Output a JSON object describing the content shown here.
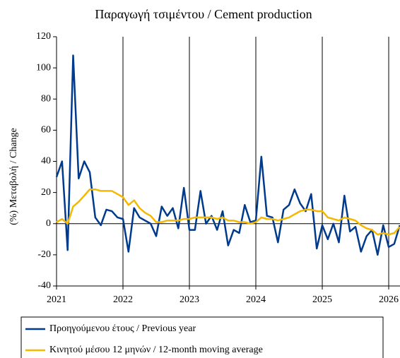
{
  "chart_data": {
    "type": "line",
    "title": "Παραγωγή τσιμέντου / Cement production",
    "y_label": "(%) Μεταβολή / Change",
    "x": [
      2021,
      2021.083,
      2021.167,
      2021.25,
      2021.333,
      2021.417,
      2021.5,
      2021.583,
      2021.667,
      2021.75,
      2021.833,
      2021.917,
      2022,
      2022.083,
      2022.167,
      2022.25,
      2022.333,
      2022.417,
      2022.5,
      2022.583,
      2022.667,
      2022.75,
      2022.833,
      2022.917,
      2023,
      2023.083,
      2023.167,
      2023.25,
      2023.333,
      2023.417,
      2023.5,
      2023.583,
      2023.667,
      2023.75,
      2023.833,
      2023.917,
      2024,
      2024.083,
      2024.167,
      2024.25,
      2024.333,
      2024.417,
      2024.5,
      2024.583,
      2024.667,
      2024.75,
      2024.833,
      2024.917,
      2025,
      2025.083,
      2025.167,
      2025.25,
      2025.333,
      2025.417,
      2025.5,
      2025.583,
      2025.667,
      2025.75,
      2025.833,
      2025.917,
      2026,
      2026.083,
      2026.167
    ],
    "series": [
      {
        "name": "Προηγούμενου έτους / Previous year",
        "color": "#003a8c",
        "values": [
          30,
          40,
          -17,
          108,
          29,
          40,
          33,
          4,
          -1,
          9,
          8,
          4,
          3,
          -18,
          10,
          4,
          2,
          0,
          -8,
          11,
          5,
          10,
          -3,
          23,
          -4,
          -4,
          21,
          0,
          5,
          -4,
          8,
          -14,
          -4,
          -6,
          12,
          1,
          2,
          43,
          5,
          4,
          -12,
          9,
          12,
          22,
          13,
          8,
          19,
          -16,
          -1,
          -10,
          0,
          -12,
          18,
          -5,
          -2,
          -18,
          -8,
          -4,
          -20,
          -1,
          -15,
          -13,
          -1
        ]
      },
      {
        "name": "Κινητού μέσου 12 μηνών / 12-month moving average",
        "color": "#f5b800",
        "values": [
          1,
          3,
          0,
          11,
          14,
          18,
          22,
          22,
          21,
          21,
          21,
          19,
          17,
          12,
          15,
          10,
          7,
          5,
          1,
          1,
          2,
          2,
          2,
          3,
          3,
          4,
          4,
          4,
          4,
          3,
          4,
          2,
          2,
          1,
          1,
          0,
          1,
          4,
          3,
          3,
          2,
          3,
          4,
          6,
          8,
          9,
          9,
          8,
          8,
          4,
          3,
          2,
          4,
          3,
          2,
          -1,
          -3,
          -4,
          -7,
          -6,
          -7,
          -6,
          -2
        ]
      }
    ],
    "xlim": [
      2021,
      2026.17
    ],
    "xticks": [
      2021,
      2022,
      2023,
      2024,
      2025,
      2026
    ],
    "ylim": [
      -40,
      120
    ],
    "yticks": [
      -40,
      -20,
      0,
      20,
      40,
      60,
      80,
      100,
      120
    ],
    "grid": true
  }
}
